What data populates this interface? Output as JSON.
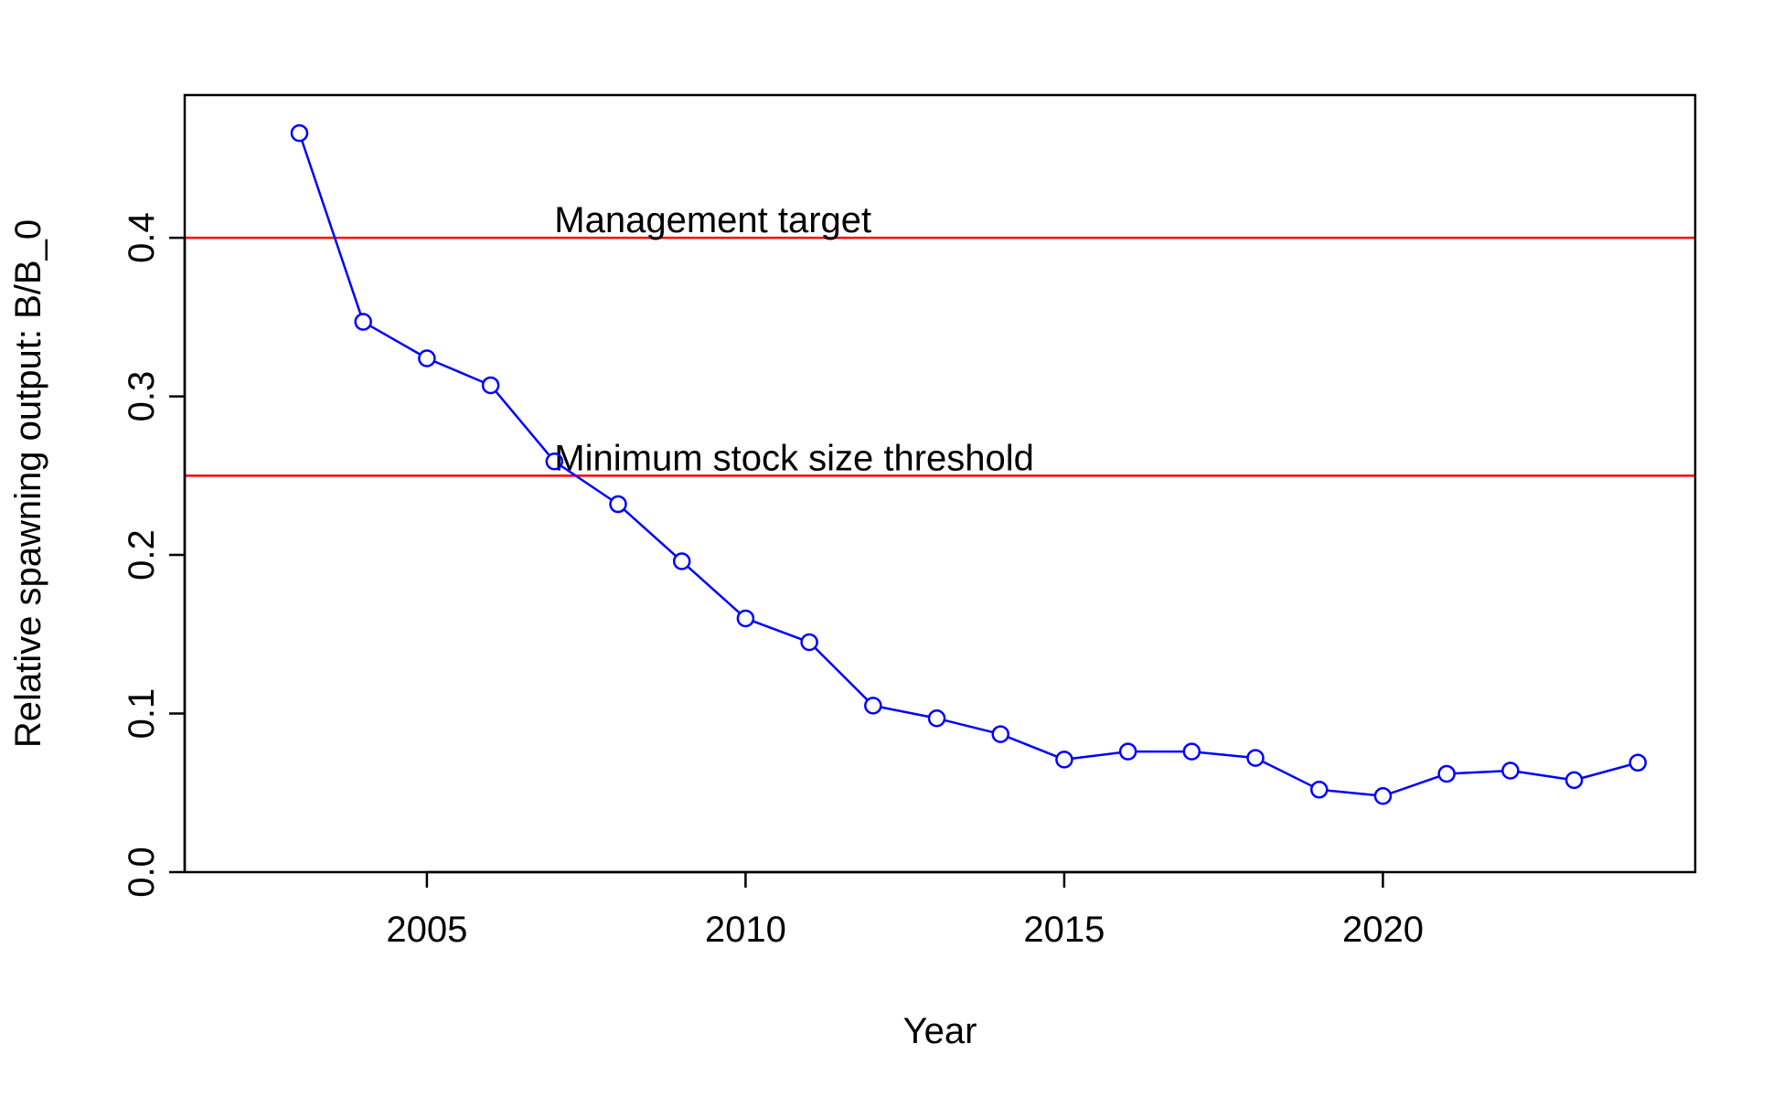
{
  "chart_data": {
    "type": "line",
    "title": "",
    "xlabel": "Year",
    "ylabel": "Relative spawning output: B/B_0",
    "xlim": [
      2001.2,
      2024.9
    ],
    "ylim": [
      0,
      0.49
    ],
    "xticks": [
      "2005",
      "2010",
      "2015",
      "2020"
    ],
    "yticks": [
      "0.0",
      "0.1",
      "0.2",
      "0.3",
      "0.4"
    ],
    "grid": false,
    "legend": "none",
    "series": [
      {
        "color": "#0000ff",
        "marker": "open-circle",
        "x": [
          2003,
          2004,
          2005,
          2006,
          2007,
          2008,
          2009,
          2010,
          2011,
          2012,
          2013,
          2014,
          2015,
          2016,
          2017,
          2018,
          2019,
          2020,
          2021,
          2022,
          2023,
          2024
        ],
        "y": [
          0.466,
          0.347,
          0.324,
          0.307,
          0.259,
          0.232,
          0.196,
          0.16,
          0.145,
          0.105,
          0.097,
          0.087,
          0.071,
          0.076,
          0.076,
          0.072,
          0.052,
          0.048,
          0.062,
          0.064,
          0.058,
          0.069
        ]
      }
    ],
    "reference_lines": [
      {
        "y": 0.4,
        "label": "Management target",
        "label_x": 2007,
        "color": "#ff0000"
      },
      {
        "y": 0.25,
        "label": "Minimum stock size threshold",
        "label_x": 2007,
        "color": "#ff0000"
      }
    ]
  }
}
